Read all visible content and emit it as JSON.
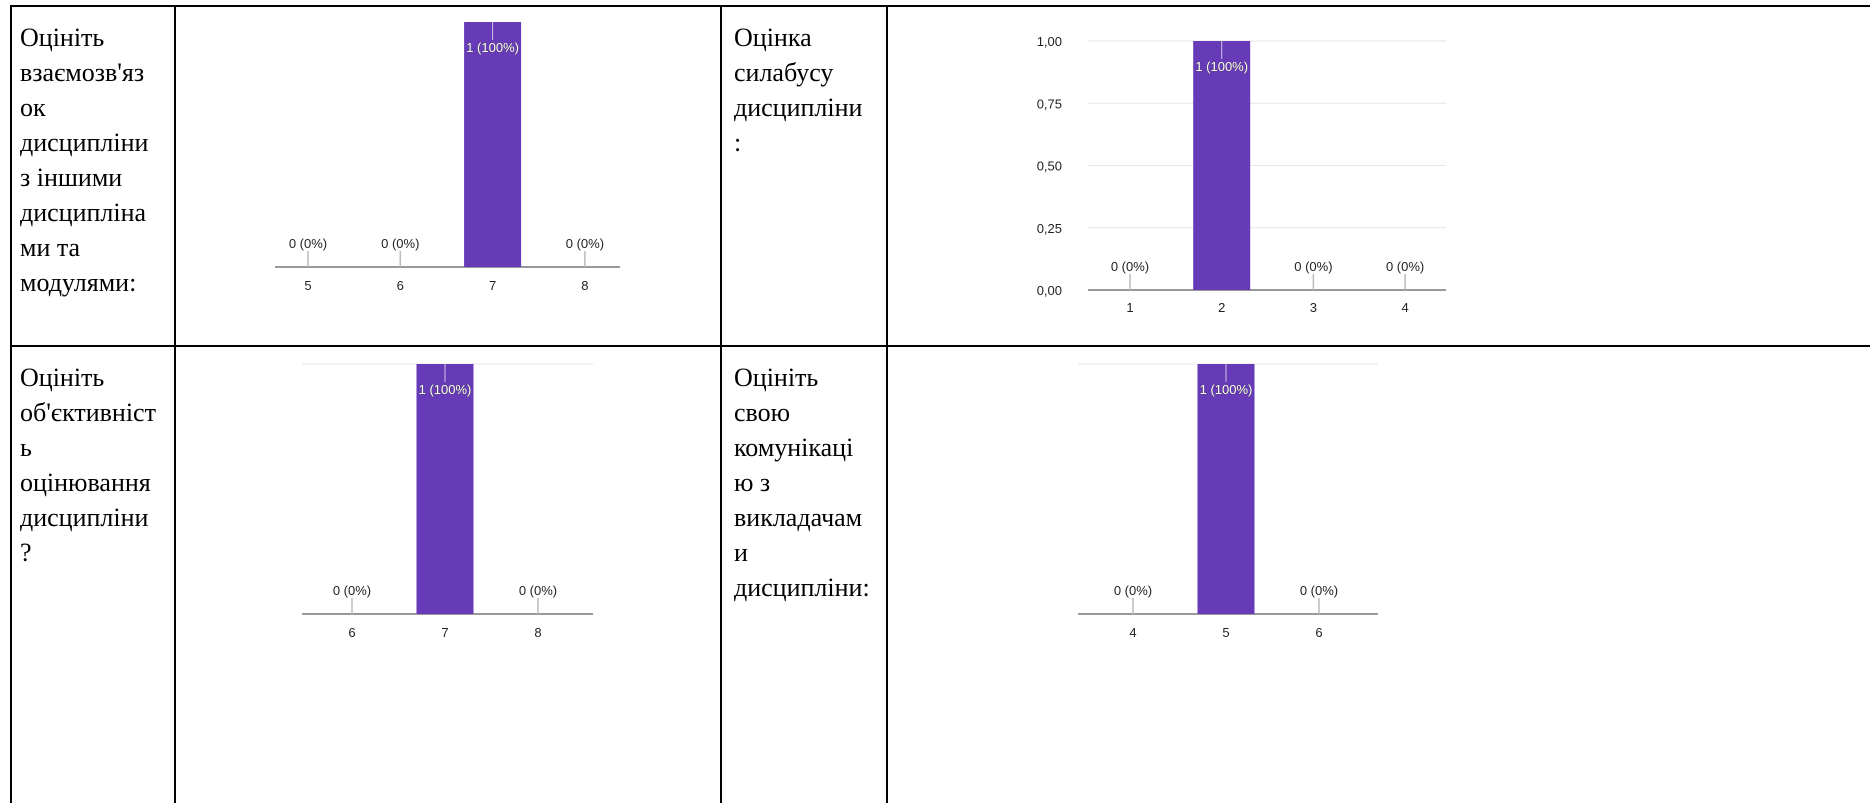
{
  "table": {
    "cells": [
      {
        "label": "Оцініть\nвзаємозв'яз\nок\nдисципліни\nз іншими\nдисципліна\nми та\nмодулями:"
      },
      {
        "label": "Оцінка\nсилабусу\nдисципліни\n:"
      },
      {
        "label": "Оцініть\nоб'єктивніст\nь\nоцінювання\nдисципліни\n?"
      },
      {
        "label": "Оцініть\nсвою\nкомунікаці\nю з\nвикладачам\nи\nдисципліни:"
      }
    ]
  },
  "colors": {
    "bar": "#673ab7",
    "axis": "#999999",
    "grid": "#e6e6e6",
    "text": "#222222"
  },
  "chart_data": [
    {
      "type": "bar",
      "categories": [
        "5",
        "6",
        "7",
        "8"
      ],
      "values": [
        0,
        0,
        1,
        0
      ],
      "data_labels": [
        "0 (0%)",
        "0 (0%)",
        "1 (100%)",
        "0 (0%)"
      ]
    },
    {
      "type": "bar",
      "categories": [
        "1",
        "2",
        "3",
        "4"
      ],
      "values": [
        0,
        1,
        0,
        0
      ],
      "data_labels": [
        "0 (0%)",
        "1 (100%)",
        "0 (0%)",
        "0 (0%)"
      ],
      "ylim": [
        0,
        1
      ],
      "yticks": [
        "0,00",
        "0,25",
        "0,50",
        "0,75",
        "1,00"
      ],
      "grid": true
    },
    {
      "type": "bar",
      "categories": [
        "6",
        "7",
        "8"
      ],
      "values": [
        0,
        1,
        0
      ],
      "data_labels": [
        "0 (0%)",
        "1 (100%)",
        "0 (0%)"
      ]
    },
    {
      "type": "bar",
      "categories": [
        "4",
        "5",
        "6"
      ],
      "values": [
        0,
        1,
        0
      ],
      "data_labels": [
        "0 (0%)",
        "1 (100%)",
        "0 (0%)"
      ]
    }
  ]
}
